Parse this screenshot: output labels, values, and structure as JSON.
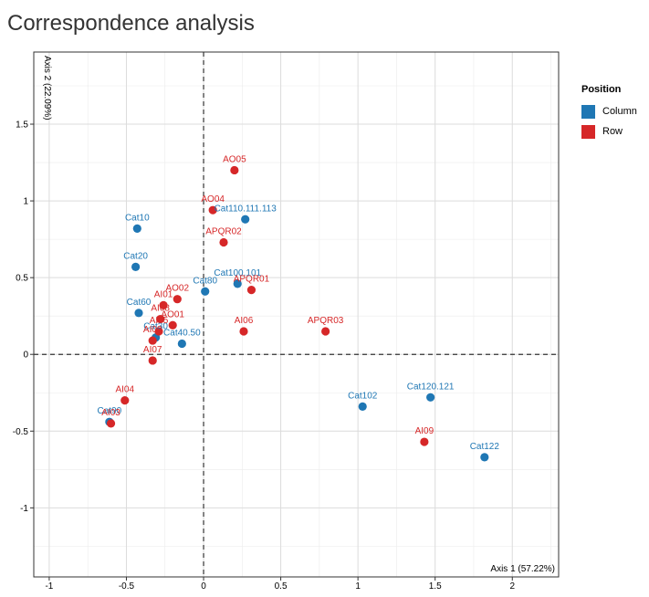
{
  "title": "Correspondence analysis",
  "colors": {
    "Column": "#1f77b4",
    "Row": "#d62728"
  },
  "legend": {
    "title": "Position",
    "items": [
      {
        "label": "Column",
        "color": "#1f77b4"
      },
      {
        "label": "Row",
        "color": "#d62728"
      }
    ]
  },
  "chart_data": {
    "type": "scatter",
    "title": "Correspondence analysis",
    "xlabel": "Axis 1 (57.22%)",
    "ylabel": "Axis 2 (22.09%)",
    "xlim": [
      -1.1,
      2.3
    ],
    "ylim": [
      -1.45,
      1.97
    ],
    "xticks": [
      -1,
      -0.5,
      0,
      0.5,
      1,
      1.5,
      2
    ],
    "xtick_labels": [
      "-1",
      "-0.5",
      "0",
      "0.5",
      "1",
      "1.5",
      "2"
    ],
    "yticks": [
      -1,
      -0.5,
      0,
      0.5,
      1,
      1.5
    ],
    "ytick_labels": [
      "-1",
      "-0.5",
      "0",
      "0.5",
      "1",
      "1.5"
    ],
    "grid": true,
    "reference_lines": {
      "x": 0,
      "y": 0,
      "style": "dashed"
    },
    "legend_placement": "right",
    "series": [
      {
        "name": "Column",
        "points": [
          {
            "label": "Cat10",
            "x": -0.43,
            "y": 0.82
          },
          {
            "label": "Cat20",
            "x": -0.44,
            "y": 0.57
          },
          {
            "label": "Cat60",
            "x": -0.42,
            "y": 0.27
          },
          {
            "label": "Cat80",
            "x": 0.01,
            "y": 0.41
          },
          {
            "label": "Cat100.101",
            "x": 0.22,
            "y": 0.46
          },
          {
            "label": "Cat110.111.113",
            "x": 0.27,
            "y": 0.88
          },
          {
            "label": "Cat30",
            "x": -0.31,
            "y": 0.11
          },
          {
            "label": "Cat40.50",
            "x": -0.14,
            "y": 0.07
          },
          {
            "label": "Cat102",
            "x": 1.03,
            "y": -0.34
          },
          {
            "label": "Cat120.121",
            "x": 1.47,
            "y": -0.28
          },
          {
            "label": "Cat122",
            "x": 1.82,
            "y": -0.67
          },
          {
            "label": "Cat90",
            "x": -0.61,
            "y": -0.44
          }
        ]
      },
      {
        "name": "Row",
        "points": [
          {
            "label": "AO05",
            "x": 0.2,
            "y": 1.2
          },
          {
            "label": "AO04",
            "x": 0.06,
            "y": 0.94
          },
          {
            "label": "APQR02",
            "x": 0.13,
            "y": 0.73
          },
          {
            "label": "APQR01",
            "x": 0.31,
            "y": 0.42
          },
          {
            "label": "AO02",
            "x": -0.17,
            "y": 0.36
          },
          {
            "label": "AI01",
            "x": -0.26,
            "y": 0.32
          },
          {
            "label": "AO01",
            "x": -0.2,
            "y": 0.19
          },
          {
            "label": "AI06",
            "x": 0.26,
            "y": 0.15
          },
          {
            "label": "APQR03",
            "x": 0.79,
            "y": 0.15
          },
          {
            "label": "AI08",
            "x": -0.28,
            "y": 0.23
          },
          {
            "label": "AI05",
            "x": -0.29,
            "y": 0.15
          },
          {
            "label": "AI02",
            "x": -0.33,
            "y": 0.09
          },
          {
            "label": "AI07",
            "x": -0.33,
            "y": -0.04
          },
          {
            "label": "AI04",
            "x": -0.51,
            "y": -0.3
          },
          {
            "label": "AI03",
            "x": -0.6,
            "y": -0.45
          },
          {
            "label": "AI09",
            "x": 1.43,
            "y": -0.57
          }
        ]
      }
    ]
  }
}
